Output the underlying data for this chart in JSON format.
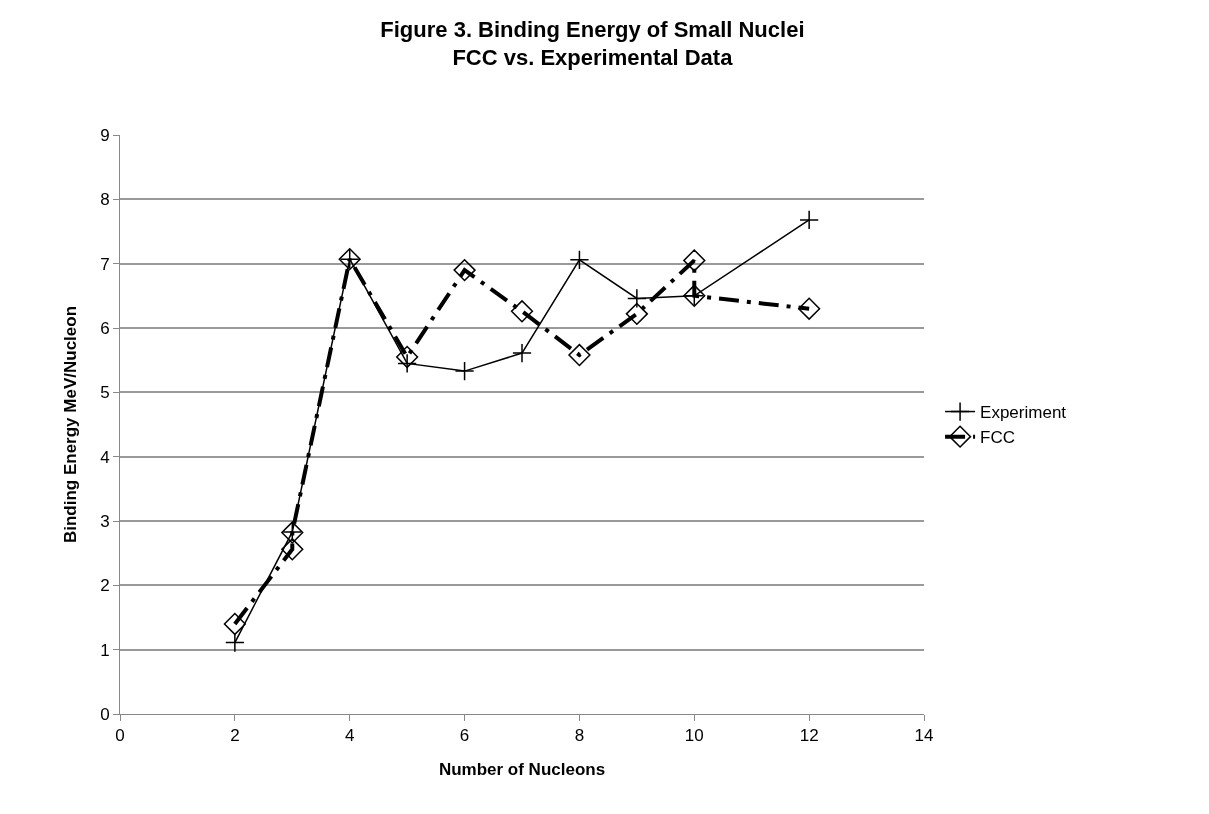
{
  "chart_data": {
    "type": "line",
    "title": "Figure 3. Binding Energy of Small Nuclei\nFCC vs. Experimental Data",
    "xlabel": "Number of Nucleons",
    "ylabel": "Binding Energy MeV/Nucleon",
    "xlim": [
      0,
      14
    ],
    "xticks": [
      0,
      2,
      4,
      6,
      8,
      10,
      12,
      14
    ],
    "ylim": [
      0,
      9
    ],
    "yticks": [
      0,
      1,
      2,
      3,
      4,
      5,
      6,
      7,
      8,
      9
    ],
    "grid": "y",
    "legend": "right",
    "series": [
      {
        "name": "Experiment",
        "color": "#000000",
        "marker": "cross",
        "line_style": "solid",
        "x": [
          2,
          3,
          4,
          5,
          6,
          7,
          8,
          9,
          10,
          12
        ],
        "values": [
          1.11,
          2.83,
          7.07,
          5.45,
          5.33,
          5.61,
          7.06,
          6.46,
          6.5,
          7.68
        ]
      },
      {
        "name": "FCC",
        "color": "#000000",
        "marker": "diamond",
        "line_style": "dashed",
        "x": [
          2,
          3,
          3,
          4,
          5,
          6,
          7,
          8,
          9,
          10,
          10,
          12
        ],
        "values": [
          1.4,
          2.56,
          2.82,
          7.07,
          5.55,
          6.9,
          6.26,
          5.58,
          6.22,
          7.05,
          6.5,
          6.3
        ]
      }
    ]
  }
}
